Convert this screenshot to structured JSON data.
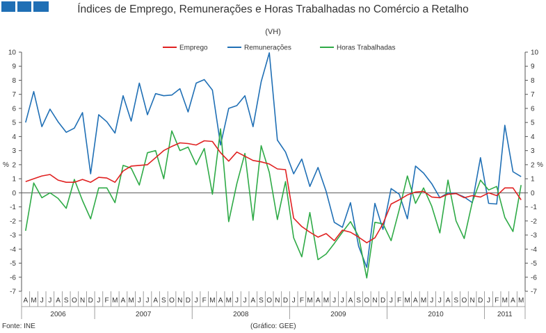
{
  "header": {
    "decor_blocks": 3,
    "decor_color": "#1f6fb5"
  },
  "chart_data": {
    "type": "line",
    "title": "Índices de Emprego, Remunerações e Horas Trabalhadas no Comércio a Retalho",
    "subtitle": "(VH)",
    "ylabel_left": "%",
    "ylabel_right": "%",
    "ylim": [
      -7,
      10
    ],
    "yticks": [
      10,
      9,
      8,
      7,
      6,
      5,
      4,
      3,
      2,
      1,
      0,
      -1,
      -2,
      -3,
      -4,
      -5,
      -6,
      -7
    ],
    "grid": false,
    "legend_position": "top",
    "months": [
      "A",
      "M",
      "J",
      "J",
      "A",
      "S",
      "O",
      "N",
      "D",
      "J",
      "F",
      "M",
      "A",
      "M",
      "J",
      "J",
      "A",
      "S",
      "O",
      "N",
      "D",
      "J",
      "F",
      "M",
      "A",
      "M",
      "J",
      "J",
      "A",
      "S",
      "O",
      "N",
      "D",
      "J",
      "F",
      "M",
      "A",
      "M",
      "J",
      "J",
      "A",
      "S",
      "O",
      "N",
      "D",
      "J",
      "F",
      "M",
      "A",
      "M",
      "J",
      "J",
      "A",
      "S",
      "O",
      "N",
      "D",
      "J",
      "F",
      "M",
      "A",
      "M"
    ],
    "years": [
      {
        "label": "2006",
        "start": 0,
        "end": 8
      },
      {
        "label": "2007",
        "start": 9,
        "end": 20
      },
      {
        "label": "2008",
        "start": 21,
        "end": 32
      },
      {
        "label": "2009",
        "start": 33,
        "end": 44
      },
      {
        "label": "2010",
        "start": 45,
        "end": 56
      },
      {
        "label": "2011",
        "start": 57,
        "end": 61
      }
    ],
    "series": [
      {
        "name": "Emprego",
        "color": "#e02020",
        "values": [
          0.8,
          1.0,
          1.2,
          1.3,
          0.9,
          0.75,
          0.75,
          0.95,
          0.75,
          1.1,
          1.05,
          0.75,
          1.55,
          1.9,
          1.95,
          2.0,
          2.5,
          3.0,
          3.3,
          3.55,
          3.5,
          3.4,
          3.7,
          3.65,
          2.85,
          2.25,
          2.9,
          2.6,
          2.3,
          2.2,
          2.05,
          1.7,
          1.65,
          -1.8,
          -2.4,
          -2.8,
          -3.15,
          -2.9,
          -3.4,
          -2.65,
          -2.8,
          -3.15,
          -3.55,
          -3.2,
          -2.2,
          -0.8,
          -0.5,
          -0.15,
          0.05,
          0.1,
          -0.3,
          -0.35,
          -0.1,
          -0.05,
          -0.35,
          -0.2,
          -0.3,
          0.0,
          -0.2,
          0.35,
          0.35,
          -0.5
        ]
      },
      {
        "name": "Remunerações",
        "color": "#1f6fb5",
        "values": [
          5.0,
          7.2,
          4.7,
          5.95,
          5.05,
          4.3,
          4.6,
          5.7,
          1.35,
          5.55,
          5.05,
          4.25,
          6.9,
          5.1,
          7.8,
          5.55,
          7.05,
          6.9,
          6.95,
          7.4,
          5.75,
          7.8,
          8.05,
          7.3,
          3.4,
          6.0,
          6.2,
          6.9,
          4.7,
          7.9,
          9.95,
          3.75,
          2.9,
          1.35,
          2.4,
          0.45,
          1.8,
          0.1,
          -2.1,
          -2.45,
          -0.7,
          -3.8,
          -5.3,
          -0.75,
          -2.6,
          0.3,
          -0.1,
          -1.85,
          1.9,
          1.4,
          0.65,
          -0.35,
          0.0,
          -0.05,
          -0.3,
          -0.7,
          2.5,
          -0.75,
          -0.8,
          4.8,
          1.5,
          1.15
        ]
      },
      {
        "name": "Horas Trabalhadas",
        "color": "#2eaa46",
        "values": [
          -2.7,
          0.7,
          -0.35,
          0.0,
          -0.4,
          -1.1,
          0.95,
          -0.55,
          -1.85,
          0.35,
          0.35,
          -0.7,
          1.95,
          1.75,
          0.55,
          2.85,
          3.0,
          1.0,
          4.4,
          3.0,
          3.25,
          2.0,
          3.15,
          -0.1,
          4.55,
          -2.05,
          0.65,
          2.8,
          -1.95,
          3.35,
          1.45,
          -1.9,
          0.8,
          -3.2,
          -4.55,
          -1.4,
          -4.75,
          -4.35,
          -3.6,
          -2.8,
          -2.05,
          -3.1,
          -6.05,
          -2.1,
          -2.2,
          -3.4,
          -1.2,
          1.2,
          -0.75,
          0.35,
          -0.95,
          -2.85,
          0.9,
          -2.0,
          -3.25,
          -0.65,
          0.9,
          0.2,
          0.45,
          -1.75,
          -2.75,
          0.55
        ]
      }
    ],
    "source_text": "Fonte: INE",
    "credit_text": "(Gráfico: GEE)"
  }
}
